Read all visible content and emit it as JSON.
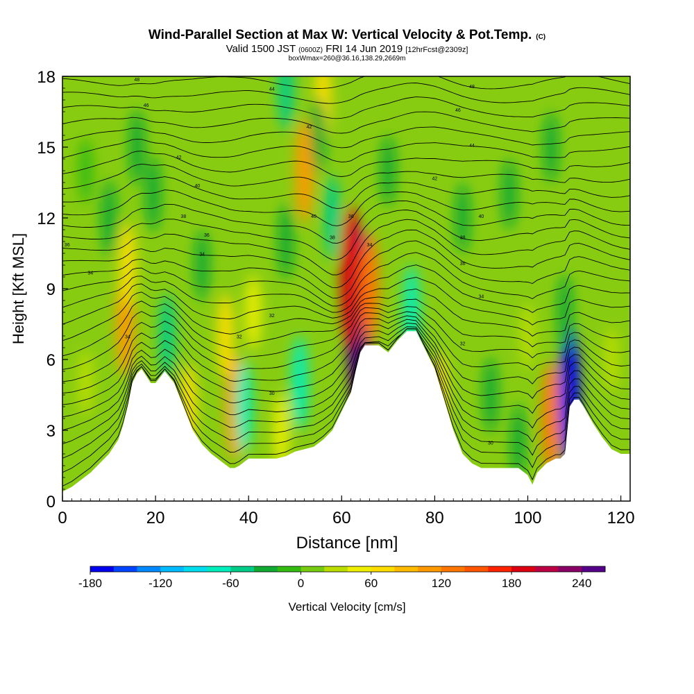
{
  "header": {
    "title": "Wind-Parallel Section at Max W: Vertical Velocity & Pot.Temp.",
    "copyright": "(C)",
    "valid_prefix": "Valid 1500 JST",
    "valid_utc": "(0600Z)",
    "valid_date": "FRI 14 Jun 2019",
    "forecast": "[12hrFcst@2309z]",
    "subtitle2": "boxWmax=260@36.16,138.29,2669m"
  },
  "chart_data": {
    "type": "heatmap",
    "title": "Wind-Parallel Section at Max W: Vertical Velocity & Pot.Temp.",
    "xlabel": "Distance [nm]",
    "ylabel": "Height [Kft MSL]",
    "xlim": [
      0,
      122
    ],
    "ylim": [
      0,
      18
    ],
    "x_ticks": [
      0,
      20,
      40,
      60,
      80,
      100,
      120
    ],
    "y_ticks": [
      0,
      3,
      6,
      9,
      12,
      15,
      18
    ],
    "colorbar": {
      "label": "Vertical Velocity [cm/s]",
      "min": -180,
      "max": 260,
      "step": 20,
      "tick_labels": [
        -180,
        -120,
        -60,
        0,
        60,
        120,
        180,
        240
      ],
      "colors": [
        "#0000ee",
        "#0044ff",
        "#0088ff",
        "#00bbff",
        "#00ddee",
        "#00eebb",
        "#00cc88",
        "#11aa33",
        "#33bb11",
        "#77cc11",
        "#bbdd00",
        "#eeee00",
        "#ffdd00",
        "#ffbb00",
        "#ff9900",
        "#ff7700",
        "#ff5500",
        "#ff2200",
        "#dd0011",
        "#bb0044",
        "#880066",
        "#550088"
      ]
    },
    "terrain_kft": {
      "x": [
        0,
        2,
        4,
        6,
        8,
        10,
        12,
        13,
        14,
        15,
        16,
        17,
        18,
        19,
        20,
        22,
        24,
        26,
        28,
        30,
        32,
        34,
        36,
        37,
        38,
        40,
        42,
        44,
        46,
        48,
        50,
        52,
        54,
        56,
        58,
        60,
        62,
        63,
        64,
        65,
        66,
        68,
        70,
        72,
        74,
        76,
        78,
        80,
        82,
        84,
        86,
        88,
        90,
        92,
        94,
        96,
        98,
        100,
        101,
        102,
        104,
        106,
        107,
        108,
        109,
        110,
        111,
        112,
        114,
        116,
        118,
        120,
        122
      ],
      "height": [
        0.4,
        0.6,
        0.9,
        1.2,
        1.6,
        2.0,
        2.6,
        3.2,
        4.0,
        5.0,
        5.4,
        5.6,
        5.3,
        5.0,
        5.0,
        5.5,
        5.0,
        4.0,
        3.0,
        2.4,
        2.0,
        1.7,
        1.4,
        1.4,
        1.5,
        1.8,
        1.8,
        1.8,
        1.8,
        1.9,
        2.1,
        2.2,
        2.3,
        2.6,
        3.0,
        3.8,
        4.6,
        5.5,
        6.3,
        6.6,
        6.6,
        6.6,
        6.3,
        6.8,
        7.2,
        7.2,
        6.4,
        5.6,
        4.3,
        3.0,
        2.0,
        1.6,
        1.4,
        1.4,
        1.4,
        1.4,
        1.4,
        1.1,
        0.7,
        1.2,
        1.6,
        1.8,
        1.8,
        2.0,
        4.0,
        4.3,
        4.3,
        4.0,
        3.3,
        2.7,
        2.2,
        2.0,
        2.0
      ]
    },
    "vertical_velocity_features": [
      {
        "x": 63.5,
        "z": 7.8,
        "w": 260,
        "note": "max updraft"
      },
      {
        "x": 62.0,
        "z": 9.5,
        "w": 180
      },
      {
        "x": 66.0,
        "z": 9.0,
        "w": 120
      },
      {
        "x": 37.0,
        "z": 4.0,
        "w": 100
      },
      {
        "x": 35.0,
        "z": 7.0,
        "w": 60
      },
      {
        "x": 41.0,
        "z": 8.0,
        "w": 40
      },
      {
        "x": 13.5,
        "z": 7.5,
        "w": 100
      },
      {
        "x": 14.0,
        "z": 10.0,
        "w": 60
      },
      {
        "x": 27.0,
        "z": 4.0,
        "w": 60
      },
      {
        "x": 52.0,
        "z": 14.0,
        "w": 100
      },
      {
        "x": 56.0,
        "z": 17.0,
        "w": 60
      },
      {
        "x": 105.0,
        "z": 3.5,
        "w": 120
      },
      {
        "x": 81.0,
        "z": 4.5,
        "w": 60
      },
      {
        "x": 47.0,
        "z": 3.0,
        "w": 40
      },
      {
        "x": 39.0,
        "z": 4.0,
        "w": -80
      },
      {
        "x": 51.0,
        "z": 5.0,
        "w": -80
      },
      {
        "x": 48.0,
        "z": 11.0,
        "w": -40
      },
      {
        "x": 58.0,
        "z": 12.0,
        "w": -60
      },
      {
        "x": 55.0,
        "z": 15.5,
        "w": -40
      },
      {
        "x": 48.0,
        "z": 17.5,
        "w": -60
      },
      {
        "x": 75.0,
        "z": 8.0,
        "w": -80
      },
      {
        "x": 92.0,
        "z": 4.5,
        "w": -40
      },
      {
        "x": 98.0,
        "z": 2.5,
        "w": -40
      },
      {
        "x": 109.0,
        "z": 4.5,
        "w": -180
      },
      {
        "x": 108.0,
        "z": 8.0,
        "w": -40
      },
      {
        "x": 22.5,
        "z": 7.0,
        "w": -60
      },
      {
        "x": 10.0,
        "z": 12.0,
        "w": -40
      },
      {
        "x": 16.0,
        "z": 15.0,
        "w": -40
      },
      {
        "x": 19.5,
        "z": 13.0,
        "w": -40
      },
      {
        "x": 30.0,
        "z": 10.0,
        "w": -30
      },
      {
        "x": 70.0,
        "z": 14.0,
        "w": -30
      },
      {
        "x": 86.0,
        "z": 12.0,
        "w": -30
      },
      {
        "x": 96.0,
        "z": 13.0,
        "w": -30
      },
      {
        "x": 105.0,
        "z": 15.0,
        "w": -30
      },
      {
        "x": 5.0,
        "z": 14.0,
        "w": -20
      },
      {
        "x": 5.0,
        "z": 5.0,
        "w": 20
      },
      {
        "x": 100.0,
        "z": 7.0,
        "w": 20
      },
      {
        "x": 118.0,
        "z": 6.0,
        "w": 20
      }
    ],
    "theta_contour_labels": [
      {
        "x": 16,
        "z": 17.8,
        "text": "48"
      },
      {
        "x": 18,
        "z": 16.7,
        "text": "46"
      },
      {
        "x": 25,
        "z": 14.5,
        "text": "42"
      },
      {
        "x": 29,
        "z": 13.3,
        "text": "40"
      },
      {
        "x": 26,
        "z": 12.0,
        "text": "38"
      },
      {
        "x": 31,
        "z": 11.2,
        "text": "36"
      },
      {
        "x": 30,
        "z": 10.4,
        "text": "34"
      },
      {
        "x": 1,
        "z": 10.8,
        "text": "36"
      },
      {
        "x": 6,
        "z": 9.6,
        "text": "34"
      },
      {
        "x": 14,
        "z": 6.9,
        "text": "34"
      },
      {
        "x": 38,
        "z": 6.9,
        "text": "32"
      },
      {
        "x": 45,
        "z": 7.8,
        "text": "32"
      },
      {
        "x": 45,
        "z": 17.4,
        "text": "44"
      },
      {
        "x": 53,
        "z": 15.8,
        "text": "42"
      },
      {
        "x": 54,
        "z": 12.0,
        "text": "40"
      },
      {
        "x": 58,
        "z": 11.1,
        "text": "38"
      },
      {
        "x": 62,
        "z": 12.0,
        "text": "36"
      },
      {
        "x": 66,
        "z": 10.8,
        "text": "34"
      },
      {
        "x": 45,
        "z": 4.5,
        "text": "30"
      },
      {
        "x": 88,
        "z": 17.5,
        "text": "48"
      },
      {
        "x": 85,
        "z": 16.5,
        "text": "46"
      },
      {
        "x": 88,
        "z": 15.0,
        "text": "44"
      },
      {
        "x": 80,
        "z": 13.6,
        "text": "42"
      },
      {
        "x": 90,
        "z": 12.0,
        "text": "40"
      },
      {
        "x": 86,
        "z": 11.1,
        "text": "38"
      },
      {
        "x": 86,
        "z": 10.0,
        "text": "36"
      },
      {
        "x": 90,
        "z": 8.6,
        "text": "34"
      },
      {
        "x": 86,
        "z": 6.6,
        "text": "32"
      },
      {
        "x": 92,
        "z": 2.4,
        "text": "30"
      }
    ]
  }
}
